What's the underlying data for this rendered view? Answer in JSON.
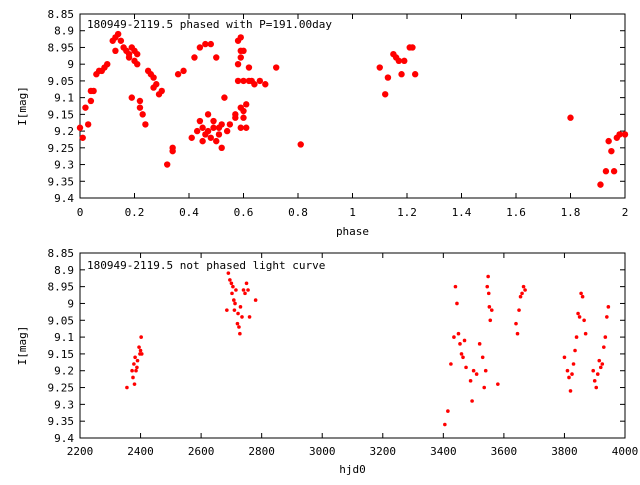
{
  "chart_data": [
    {
      "type": "scatter",
      "title": "180949-2119.5 phased with P=191.00day",
      "xlabel": "phase",
      "ylabel": "I[mag]",
      "xlim": [
        0,
        2
      ],
      "ylim": [
        8.85,
        9.4
      ],
      "y_inverted": true,
      "grid": false,
      "x_ticks": [
        0,
        0.2,
        0.4,
        0.6,
        0.8,
        1,
        1.2,
        1.4,
        1.6,
        1.8,
        2
      ],
      "x_tick_labels": [
        "0",
        "0.2",
        "0.4",
        "0.6",
        "0.8",
        "1",
        "1.2",
        "1.4",
        "1.6",
        "1.8",
        "2"
      ],
      "y_ticks": [
        8.85,
        8.9,
        8.95,
        9,
        9.05,
        9.1,
        9.15,
        9.2,
        9.25,
        9.3,
        9.35,
        9.4
      ],
      "y_tick_labels": [
        "8.85",
        "8.9",
        "8.95",
        "9",
        "9.05",
        "9.1",
        "9.15",
        "9.2",
        "9.25",
        "9.3",
        "9.35",
        "9.4"
      ],
      "series": [
        {
          "color": "#ff0000",
          "marker": "filled-circle",
          "x": [
            0.0,
            0.01,
            0.02,
            0.03,
            0.04,
            0.04,
            0.05,
            0.06,
            0.07,
            0.08,
            0.09,
            0.1,
            0.12,
            0.13,
            0.13,
            0.14,
            0.15,
            0.16,
            0.17,
            0.18,
            0.18,
            0.19,
            0.19,
            0.2,
            0.2,
            0.21,
            0.21,
            0.22,
            0.22,
            0.23,
            0.24,
            0.25,
            0.26,
            0.27,
            0.27,
            0.28,
            0.29,
            0.3,
            0.32,
            0.34,
            0.34,
            0.36,
            0.38,
            0.41,
            0.42,
            0.43,
            0.44,
            0.44,
            0.45,
            0.45,
            0.46,
            0.46,
            0.47,
            0.47,
            0.48,
            0.48,
            0.49,
            0.49,
            0.5,
            0.5,
            0.51,
            0.51,
            0.52,
            0.52,
            0.53,
            0.54,
            0.55,
            0.57,
            0.57,
            0.58,
            0.58,
            0.58,
            0.59,
            0.59,
            0.59,
            0.59,
            0.59,
            0.6,
            0.6,
            0.6,
            0.6,
            0.61,
            0.61,
            0.62,
            0.62,
            0.63,
            0.64,
            0.66,
            0.68,
            0.72,
            0.81,
            1.1,
            1.12,
            1.13,
            1.15,
            1.16,
            1.17,
            1.18,
            1.19,
            1.21,
            1.22,
            1.23,
            1.8,
            1.91,
            1.93,
            1.94,
            1.95,
            1.96,
            1.97,
            1.98,
            2.0
          ],
          "y": [
            9.19,
            9.22,
            9.13,
            9.18,
            9.08,
            9.11,
            9.08,
            9.03,
            9.02,
            9.02,
            9.01,
            9.0,
            8.93,
            8.92,
            8.96,
            8.91,
            8.93,
            8.95,
            8.96,
            8.97,
            8.98,
            8.95,
            9.1,
            8.96,
            8.99,
            8.97,
            9.0,
            9.11,
            9.13,
            9.15,
            9.18,
            9.02,
            9.03,
            9.04,
            9.07,
            9.06,
            9.09,
            9.08,
            9.3,
            9.25,
            9.26,
            9.03,
            9.02,
            9.22,
            8.98,
            9.2,
            8.95,
            9.17,
            9.23,
            9.19,
            8.94,
            9.21,
            9.15,
            9.2,
            9.22,
            8.94,
            9.17,
            9.19,
            8.98,
            9.23,
            9.19,
            9.21,
            9.25,
            9.18,
            9.1,
            9.2,
            9.18,
            9.15,
            9.16,
            8.93,
            9.0,
            9.05,
            8.92,
            8.96,
            8.98,
            9.13,
            9.19,
            9.14,
            9.16,
            9.05,
            8.96,
            9.12,
            9.19,
            9.01,
            9.05,
            9.05,
            9.06,
            9.05,
            9.06,
            9.01,
            9.24,
            9.01,
            9.09,
            9.04,
            8.97,
            8.98,
            8.99,
            9.03,
            8.99,
            8.95,
            8.95,
            9.03,
            9.16,
            9.36,
            9.32,
            9.23,
            9.26,
            9.32,
            9.22,
            9.21,
            9.21
          ]
        }
      ]
    },
    {
      "type": "scatter",
      "title": "180949-2119.5 not phased light curve",
      "xlabel": "hjd0",
      "ylabel": "I[mag]",
      "xlim": [
        2200,
        4000
      ],
      "ylim": [
        8.85,
        9.4
      ],
      "y_inverted": true,
      "grid": false,
      "x_ticks": [
        2200,
        2400,
        2600,
        2800,
        3000,
        3200,
        3400,
        3600,
        3800,
        4000
      ],
      "x_tick_labels": [
        "2200",
        "2400",
        "2600",
        "2800",
        "3000",
        "3200",
        "3400",
        "3600",
        "3800",
        "4000"
      ],
      "y_ticks": [
        8.85,
        8.9,
        8.95,
        9,
        9.05,
        9.1,
        9.15,
        9.2,
        9.25,
        9.3,
        9.35,
        9.4
      ],
      "y_tick_labels": [
        "8.85",
        "8.9",
        "8.95",
        "9",
        "9.05",
        "9.1",
        "9.15",
        "9.2",
        "9.25",
        "9.3",
        "9.35",
        "9.4"
      ],
      "series": [
        {
          "color": "#ff0000",
          "marker": "small-dot",
          "x": [
            2355,
            2372,
            2375,
            2378,
            2380,
            2382,
            2385,
            2388,
            2390,
            2395,
            2398,
            2400,
            2402,
            2404,
            2685,
            2690,
            2695,
            2700,
            2702,
            2705,
            2708,
            2710,
            2712,
            2715,
            2720,
            2722,
            2725,
            2728,
            2730,
            2735,
            2740,
            2745,
            2750,
            2755,
            2760,
            2780,
            3405,
            3415,
            3425,
            3435,
            3440,
            3445,
            3450,
            3455,
            3460,
            3465,
            3470,
            3475,
            3490,
            3495,
            3500,
            3510,
            3520,
            3530,
            3535,
            3540,
            3545,
            3548,
            3550,
            3552,
            3555,
            3560,
            3580,
            3640,
            3645,
            3650,
            3655,
            3660,
            3665,
            3670,
            3800,
            3810,
            3815,
            3820,
            3825,
            3830,
            3835,
            3840,
            3845,
            3850,
            3855,
            3860,
            3865,
            3870,
            3895,
            3900,
            3905,
            3910,
            3915,
            3920,
            3925,
            3930,
            3935,
            3940,
            3945
          ],
          "y": [
            9.25,
            9.2,
            9.22,
            9.18,
            9.24,
            9.16,
            9.2,
            9.19,
            9.17,
            9.13,
            9.15,
            9.14,
            9.1,
            9.15,
            9.02,
            8.91,
            8.93,
            8.94,
            8.97,
            8.95,
            8.99,
            9.02,
            9.0,
            8.96,
            9.06,
            9.03,
            9.07,
            9.09,
            9.01,
            9.04,
            8.96,
            8.97,
            8.94,
            8.96,
            9.04,
            8.99,
            9.36,
            9.32,
            9.18,
            9.1,
            8.95,
            9.0,
            9.09,
            9.12,
            9.15,
            9.16,
            9.11,
            9.19,
            9.23,
            9.29,
            9.2,
            9.21,
            9.12,
            9.16,
            9.25,
            9.2,
            8.95,
            8.92,
            8.97,
            9.01,
            9.05,
            9.02,
            9.24,
            9.06,
            9.09,
            9.02,
            8.98,
            8.97,
            8.95,
            8.96,
            9.16,
            9.2,
            9.22,
            9.26,
            9.21,
            9.18,
            9.14,
            9.1,
            9.03,
            9.04,
            8.97,
            8.98,
            9.05,
            9.09,
            9.2,
            9.23,
            9.25,
            9.21,
            9.17,
            9.19,
            9.18,
            9.13,
            9.1,
            9.04,
            9.01
          ]
        }
      ]
    }
  ]
}
